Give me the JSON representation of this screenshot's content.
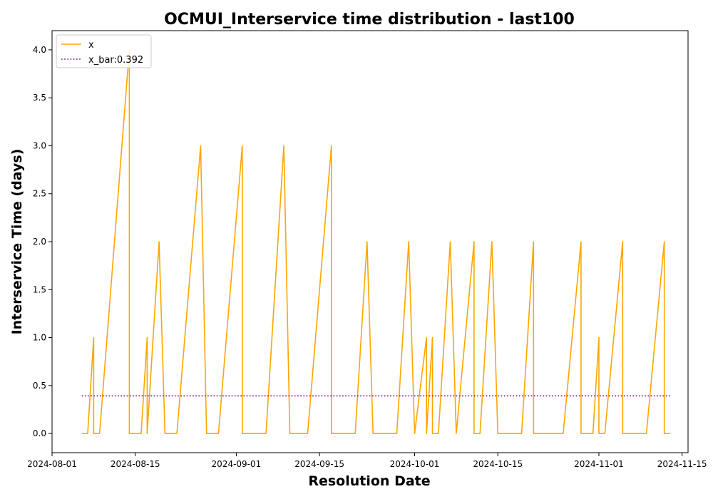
{
  "chart_data": {
    "type": "line",
    "title": "OCMUI_Interservice time distribution - last100",
    "xlabel": "Resolution Date",
    "ylabel": "Interservice Time (days)",
    "x_is_date": true,
    "xlim": [
      "2024-08-01",
      "2024-11-16"
    ],
    "ylim": [
      -0.2,
      4.2
    ],
    "yticks": [
      0.0,
      0.5,
      1.0,
      1.5,
      2.0,
      2.5,
      3.0,
      3.5,
      4.0
    ],
    "ytick_labels": [
      "0.0",
      "0.5",
      "1.0",
      "1.5",
      "2.0",
      "2.5",
      "3.0",
      "3.5",
      "4.0"
    ],
    "xticks": [
      "2024-08-01",
      "2024-08-15",
      "2024-09-01",
      "2024-09-15",
      "2024-10-01",
      "2024-10-15",
      "2024-11-01",
      "2024-11-15"
    ],
    "grid": false,
    "legend_position": "top-left",
    "series": [
      {
        "name": "x",
        "color": "#ffa500",
        "style": "solid",
        "x": [
          "2024-08-06",
          "2024-08-07",
          "2024-08-08",
          "2024-08-08",
          "2024-08-09",
          "2024-08-14",
          "2024-08-14",
          "2024-08-16",
          "2024-08-17",
          "2024-08-17",
          "2024-08-19",
          "2024-08-20",
          "2024-08-22",
          "2024-08-26",
          "2024-08-27",
          "2024-08-29",
          "2024-09-02",
          "2024-09-02",
          "2024-09-06",
          "2024-09-09",
          "2024-09-10",
          "2024-09-13",
          "2024-09-17",
          "2024-09-17",
          "2024-09-21",
          "2024-09-23",
          "2024-09-24",
          "2024-09-28",
          "2024-09-30",
          "2024-10-01",
          "2024-10-03",
          "2024-10-03",
          "2024-10-04",
          "2024-10-04",
          "2024-10-05",
          "2024-10-07",
          "2024-10-08",
          "2024-10-11",
          "2024-10-11",
          "2024-10-12",
          "2024-10-14",
          "2024-10-15",
          "2024-10-19",
          "2024-10-21",
          "2024-10-21",
          "2024-10-26",
          "2024-10-29",
          "2024-10-29",
          "2024-10-31",
          "2024-11-01",
          "2024-11-01",
          "2024-11-02",
          "2024-11-05",
          "2024-11-05",
          "2024-11-09",
          "2024-11-12",
          "2024-11-12",
          "2024-11-13"
        ],
        "values": [
          0,
          0,
          1,
          0,
          0,
          4,
          0,
          0,
          1,
          0,
          2,
          0,
          0,
          3,
          0,
          0,
          3,
          0,
          0,
          3,
          0,
          0,
          3,
          0,
          0,
          2,
          0,
          0,
          2,
          0,
          1,
          0,
          1,
          0,
          0,
          2,
          0,
          2,
          0,
          0,
          2,
          0,
          0,
          2,
          0,
          0,
          2,
          0,
          0,
          1,
          0,
          0,
          2,
          0,
          0,
          2,
          0,
          0
        ]
      },
      {
        "name": "x_bar:0.392",
        "color": "#800080",
        "style": "dotted",
        "x": [
          "2024-08-06",
          "2024-11-13"
        ],
        "values": [
          0.392,
          0.392
        ]
      }
    ]
  }
}
